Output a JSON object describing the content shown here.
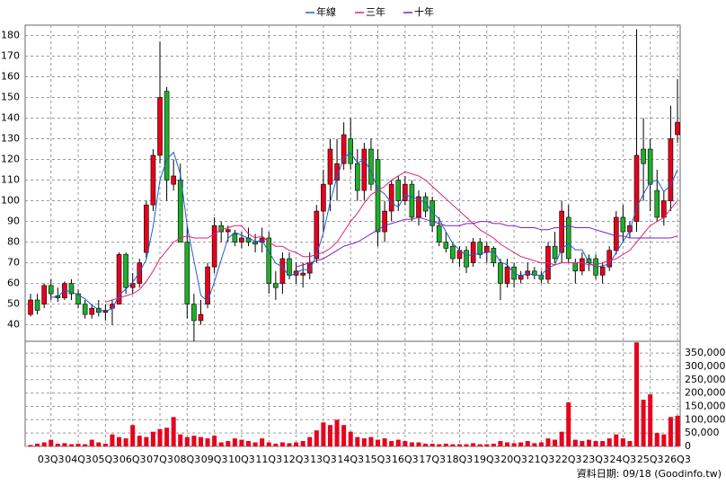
{
  "chart_data": {
    "type": "candlestick",
    "legend": [
      "年線",
      "三年",
      "十年"
    ],
    "source": "資料日期: 09/18 (Goodinfo.tw)",
    "categories": [
      null,
      null,
      null,
      "03Q3",
      null,
      null,
      null,
      "04Q3",
      null,
      null,
      null,
      "05Q3",
      null,
      null,
      null,
      "06Q3",
      null,
      null,
      null,
      "07Q3",
      null,
      null,
      null,
      "08Q3",
      null,
      null,
      null,
      "09Q3",
      null,
      null,
      null,
      "10Q3",
      null,
      null,
      null,
      "11Q3",
      null,
      null,
      null,
      "12Q3",
      null,
      null,
      null,
      "13Q3",
      null,
      null,
      null,
      "14Q3",
      null,
      null,
      null,
      "15Q3",
      null,
      null,
      null,
      "16Q3",
      null,
      null,
      null,
      "17Q3",
      null,
      null,
      null,
      "18Q3",
      null,
      null,
      null,
      "19Q3",
      null,
      null,
      null,
      "20Q3",
      null,
      null,
      null,
      "21Q3",
      null,
      null,
      null,
      "22Q3",
      null,
      null,
      null,
      "23Q3",
      null,
      null,
      null,
      "24Q3",
      null,
      null,
      null,
      "25Q3",
      null,
      null,
      null,
      "26Q3"
    ],
    "open": [
      45,
      52,
      50,
      59,
      54,
      53,
      60,
      55,
      50,
      45,
      48,
      46,
      48,
      50,
      74,
      58,
      60,
      75,
      98,
      122,
      153,
      108,
      110,
      80,
      50,
      42,
      50,
      68,
      88,
      85,
      84,
      80,
      82,
      80,
      80,
      82,
      60,
      60,
      72,
      64,
      64,
      65,
      72,
      95,
      108,
      110,
      118,
      130,
      118,
      105,
      125,
      120,
      85,
      95,
      110,
      100,
      108,
      92,
      102,
      100,
      88,
      80,
      78,
      72,
      76,
      70,
      80,
      75,
      77,
      70,
      60,
      68,
      62,
      64,
      66,
      64,
      62,
      78,
      75,
      92,
      70,
      66,
      72,
      72,
      64,
      68,
      76,
      92,
      85,
      90,
      125,
      125,
      105,
      92,
      100,
      132
    ],
    "high": [
      55,
      55,
      60,
      62,
      58,
      61,
      62,
      57,
      52,
      50,
      52,
      50,
      52,
      75,
      75,
      65,
      72,
      100,
      125,
      177,
      155,
      120,
      118,
      88,
      55,
      52,
      70,
      92,
      90,
      88,
      86,
      85,
      87,
      84,
      87,
      85,
      66,
      75,
      75,
      70,
      70,
      75,
      98,
      115,
      130,
      130,
      138,
      140,
      125,
      128,
      130,
      125,
      100,
      110,
      112,
      112,
      110,
      105,
      104,
      102,
      92,
      85,
      80,
      78,
      78,
      82,
      82,
      80,
      78,
      72,
      72,
      70,
      66,
      70,
      68,
      66,
      80,
      85,
      100,
      98,
      72,
      75,
      74,
      74,
      70,
      78,
      95,
      98,
      90,
      183,
      140,
      130,
      115,
      105,
      146,
      159
    ],
    "low": [
      44,
      45,
      48,
      52,
      51,
      52,
      52,
      48,
      43,
      43,
      44,
      42,
      40,
      50,
      55,
      55,
      58,
      72,
      95,
      118,
      100,
      105,
      80,
      43,
      32,
      40,
      48,
      65,
      80,
      80,
      78,
      77,
      78,
      75,
      75,
      55,
      52,
      55,
      62,
      60,
      58,
      62,
      70,
      85,
      95,
      100,
      115,
      115,
      100,
      100,
      105,
      78,
      80,
      90,
      95,
      98,
      90,
      88,
      92,
      85,
      78,
      75,
      70,
      68,
      65,
      68,
      72,
      70,
      68,
      52,
      58,
      58,
      60,
      62,
      62,
      60,
      60,
      70,
      70,
      70,
      60,
      64,
      66,
      62,
      60,
      66,
      74,
      80,
      82,
      85,
      100,
      95,
      90,
      88,
      95,
      128
    ],
    "close": [
      52,
      47,
      59,
      55,
      53,
      60,
      55,
      50,
      45,
      48,
      46,
      47,
      50,
      74,
      58,
      60,
      70,
      98,
      122,
      150,
      110,
      112,
      80,
      50,
      42,
      45,
      68,
      88,
      85,
      86,
      80,
      82,
      80,
      79,
      82,
      60,
      58,
      72,
      64,
      66,
      65,
      70,
      95,
      108,
      125,
      118,
      132,
      118,
      105,
      125,
      108,
      85,
      95,
      108,
      100,
      108,
      92,
      102,
      95,
      88,
      80,
      77,
      72,
      76,
      68,
      80,
      74,
      78,
      70,
      60,
      68,
      62,
      64,
      66,
      64,
      62,
      78,
      72,
      95,
      72,
      66,
      72,
      70,
      64,
      68,
      76,
      92,
      85,
      88,
      122,
      118,
      108,
      92,
      100,
      130,
      138
    ],
    "up_color": "#e8001c",
    "down_color": "#1fae2a",
    "series": [
      {
        "name": "年線",
        "color": "#1d5fd0",
        "values": [
          null,
          null,
          null,
          53.3,
          53.5,
          56.8,
          55.8,
          54.5,
          52.5,
          49.5,
          47.3,
          46.5,
          47.8,
          54.3,
          57.3,
          60.5,
          65.5,
          71.5,
          87.5,
          110,
          120,
          123.5,
          113,
          88,
          71,
          54.3,
          51.3,
          60.8,
          71.5,
          81.8,
          84.8,
          83.3,
          82,
          80.3,
          80.8,
          75.3,
          69.8,
          68,
          63.5,
          65,
          66.8,
          66.3,
          74,
          84.5,
          99.5,
          111.5,
          120.8,
          123.3,
          118.3,
          120,
          114,
          105.8,
          103.3,
          99,
          97,
          102.8,
          102,
          100.5,
          99.3,
          94.3,
          91.3,
          85,
          79.3,
          76.3,
          73.3,
          74,
          74.5,
          75,
          75.5,
          70.5,
          69,
          65,
          63.5,
          65,
          64,
          64,
          67.5,
          69,
          76.8,
          79.3,
          76.3,
          76.3,
          70,
          68,
          68.5,
          69.5,
          75,
          80.3,
          85.3,
          96.8,
          103.3,
          109,
          110,
          104.5,
          107.5,
          115
        ]
      },
      {
        "name": "三年",
        "color": "#e0207a",
        "values": [
          null,
          null,
          null,
          null,
          null,
          null,
          null,
          null,
          null,
          null,
          null,
          51,
          52,
          53,
          54,
          55,
          57,
          61,
          66,
          72,
          76,
          80,
          82,
          83,
          82,
          82,
          82,
          84,
          86,
          87,
          88,
          88,
          84,
          82,
          83,
          80,
          78,
          78,
          76,
          75,
          73,
          73,
          74,
          75,
          77,
          80,
          85,
          90,
          94,
          99,
          103,
          105,
          107,
          110,
          112,
          114,
          113,
          112,
          110,
          107,
          104,
          101,
          98,
          95,
          92,
          89,
          86,
          84,
          82,
          79,
          77,
          75,
          73,
          72,
          71,
          70,
          70,
          69,
          70,
          70,
          70,
          70,
          69,
          69,
          70,
          71,
          72,
          74,
          76,
          80,
          84,
          88,
          90,
          92,
          96,
          100
        ]
      },
      {
        "name": "十年",
        "color": "#7a22c8",
        "values": [
          null,
          null,
          null,
          null,
          null,
          null,
          null,
          null,
          null,
          null,
          null,
          null,
          null,
          null,
          null,
          null,
          null,
          null,
          null,
          null,
          null,
          null,
          null,
          null,
          null,
          null,
          null,
          null,
          null,
          null,
          null,
          null,
          null,
          null,
          null,
          null,
          null,
          null,
          null,
          68,
          69,
          70,
          71,
          72,
          74,
          76,
          78,
          79,
          80,
          82,
          84,
          86,
          88,
          89,
          90,
          91,
          91,
          92,
          91,
          90,
          89,
          88,
          88,
          88,
          89,
          89,
          90,
          90,
          89,
          89,
          88,
          88,
          87,
          87,
          87,
          86,
          86,
          87,
          87,
          88,
          87,
          87,
          87,
          86,
          85,
          84,
          83,
          83,
          82,
          82,
          82,
          82,
          82,
          82,
          82,
          83
        ]
      }
    ],
    "ylim": [
      32,
      185
    ],
    "yticks": [
      40,
      50,
      60,
      70,
      80,
      90,
      100,
      110,
      120,
      130,
      140,
      150,
      160,
      170,
      180
    ],
    "grid": true,
    "volume": {
      "color": "#e8001c",
      "values": [
        5000,
        10000,
        15000,
        25000,
        10000,
        12000,
        8000,
        10000,
        8000,
        25000,
        15000,
        10000,
        45000,
        35000,
        30000,
        80000,
        40000,
        35000,
        55000,
        65000,
        70000,
        110000,
        45000,
        35000,
        40000,
        35000,
        30000,
        40000,
        15000,
        20000,
        30000,
        25000,
        20000,
        15000,
        30000,
        15000,
        10000,
        15000,
        12000,
        15000,
        20000,
        35000,
        60000,
        90000,
        80000,
        100000,
        80000,
        55000,
        35000,
        30000,
        35000,
        25000,
        30000,
        20000,
        25000,
        20000,
        15000,
        15000,
        10000,
        10000,
        8000,
        10000,
        8000,
        8000,
        8000,
        12000,
        8000,
        8000,
        10000,
        20000,
        15000,
        12000,
        15000,
        20000,
        12000,
        15000,
        30000,
        25000,
        55000,
        165000,
        25000,
        20000,
        25000,
        20000,
        20000,
        30000,
        45000,
        30000,
        20000,
        390000,
        175000,
        195000,
        50000,
        45000,
        110000,
        115000
      ],
      "ylim": [
        0,
        394000
      ],
      "yticks": [
        0,
        {
          "value": 50000,
          "label": "50,000"
        },
        {
          "value": 100000,
          "label": "100,000"
        },
        {
          "value": 150000,
          "label": "150,000"
        },
        {
          "value": 200000,
          "label": "200,000"
        },
        {
          "value": 250000,
          "label": "250,000"
        },
        {
          "value": 300000,
          "label": "300,000"
        },
        {
          "value": 350000,
          "label": "350,000"
        }
      ]
    }
  }
}
